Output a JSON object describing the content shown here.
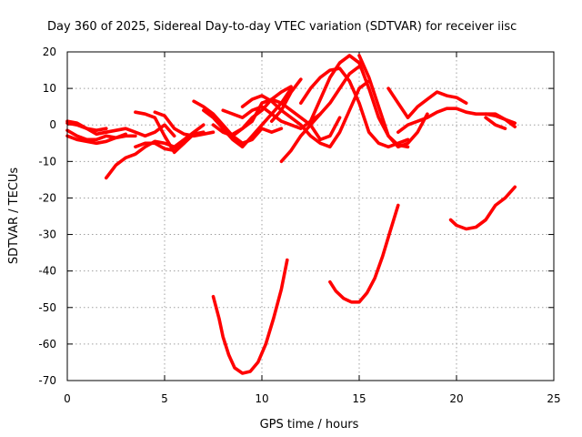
{
  "chart_data": {
    "type": "line",
    "title": "Day 360 of 2025, Sidereal Day-to-day VTEC variation (SDTVAR) for receiver iisc",
    "xlabel": "GPS time / hours",
    "ylabel": "SDTVAR / TECUs",
    "xlim": [
      0,
      25
    ],
    "ylim": [
      -70,
      20
    ],
    "xticks": [
      0,
      5,
      10,
      15,
      20,
      25
    ],
    "yticks": [
      -70,
      -60,
      -50,
      -40,
      -30,
      -20,
      -10,
      0,
      10,
      20
    ],
    "grid": true,
    "color": "#ff0000",
    "series": [
      {
        "name": "s1",
        "points": [
          [
            0,
            0.5
          ],
          [
            0.5,
            0
          ],
          [
            1,
            -1
          ],
          [
            1.5,
            -2.5
          ],
          [
            2,
            -2
          ],
          [
            2.5,
            -1.5
          ],
          [
            3,
            -1
          ],
          [
            3.5,
            -2
          ],
          [
            4,
            -3
          ],
          [
            4.5,
            -2
          ],
          [
            5,
            0
          ],
          [
            5.5,
            -3
          ]
        ]
      },
      {
        "name": "s2",
        "points": [
          [
            0,
            -3
          ],
          [
            0.5,
            -4
          ],
          [
            1,
            -4.5
          ],
          [
            1.5,
            -5
          ],
          [
            2,
            -4.5
          ],
          [
            2.5,
            -3.5
          ],
          [
            3,
            -2.5
          ]
        ]
      },
      {
        "name": "s3",
        "points": [
          [
            0,
            -1.5
          ],
          [
            0.5,
            -3
          ],
          [
            1,
            -4
          ],
          [
            1.5,
            -4
          ],
          [
            2,
            -3
          ],
          [
            2.5,
            -3.5
          ],
          [
            3,
            -3
          ],
          [
            3.5,
            -3
          ]
        ]
      },
      {
        "name": "s4",
        "points": [
          [
            0,
            1
          ],
          [
            0.5,
            0.5
          ],
          [
            1,
            -1
          ],
          [
            1.5,
            -1.5
          ],
          [
            2,
            -1
          ]
        ]
      },
      {
        "name": "s5",
        "points": [
          [
            2,
            -14.5
          ],
          [
            2.5,
            -11
          ],
          [
            3,
            -9
          ],
          [
            3.5,
            -8
          ],
          [
            4,
            -6
          ],
          [
            4.5,
            -4.5
          ],
          [
            5,
            -5
          ],
          [
            5.5,
            -6
          ],
          [
            6,
            -4
          ],
          [
            6.5,
            -2
          ],
          [
            7,
            0
          ]
        ]
      },
      {
        "name": "s6",
        "points": [
          [
            3.5,
            3.5
          ],
          [
            4,
            3
          ],
          [
            4.5,
            2
          ],
          [
            5,
            -3
          ],
          [
            5.5,
            -7.5
          ],
          [
            6,
            -5
          ],
          [
            6.5,
            -2.5
          ],
          [
            7,
            -2
          ]
        ]
      },
      {
        "name": "s7",
        "points": [
          [
            3.5,
            -6
          ],
          [
            4,
            -5
          ],
          [
            4.5,
            -5
          ],
          [
            5,
            -6.5
          ],
          [
            5.5,
            -7
          ],
          [
            6,
            -5
          ]
        ]
      },
      {
        "name": "s8",
        "points": [
          [
            4.5,
            3.5
          ],
          [
            5,
            2.5
          ],
          [
            5.5,
            -1
          ],
          [
            6,
            -2.5
          ],
          [
            6.5,
            -3
          ],
          [
            7,
            -2.5
          ],
          [
            7.5,
            -2
          ]
        ]
      },
      {
        "name": "s9",
        "points": [
          [
            6.5,
            6.5
          ],
          [
            7,
            5
          ],
          [
            7.5,
            3
          ],
          [
            8,
            0
          ],
          [
            8.5,
            -3
          ],
          [
            9,
            -5
          ],
          [
            9.5,
            -4
          ],
          [
            10,
            -1
          ],
          [
            10.5,
            -2
          ],
          [
            11,
            -1
          ]
        ]
      },
      {
        "name": "s10",
        "points": [
          [
            7,
            4
          ],
          [
            7.5,
            2
          ],
          [
            8,
            -1
          ],
          [
            8.5,
            -4
          ],
          [
            9,
            -6
          ],
          [
            9.5,
            -3
          ],
          [
            10,
            0
          ],
          [
            10.5,
            3
          ],
          [
            11,
            6
          ],
          [
            11.5,
            10
          ]
        ]
      },
      {
        "name": "s11",
        "points": [
          [
            7.5,
            0
          ],
          [
            8,
            -2
          ],
          [
            8.5,
            -3
          ],
          [
            9,
            -1
          ],
          [
            9.5,
            2
          ],
          [
            10,
            4
          ],
          [
            10.5,
            7
          ],
          [
            11,
            9
          ],
          [
            11.5,
            10.5
          ]
        ]
      },
      {
        "name": "s12",
        "points": [
          [
            8,
            4
          ],
          [
            8.5,
            3
          ],
          [
            9,
            2
          ],
          [
            9.5,
            4
          ],
          [
            10,
            5
          ],
          [
            10.5,
            3
          ],
          [
            11,
            1
          ],
          [
            11.5,
            0
          ],
          [
            12,
            -1
          ],
          [
            12.5,
            1
          ],
          [
            13,
            3
          ]
        ]
      },
      {
        "name": "s13",
        "points": [
          [
            8.5,
            -2.5
          ],
          [
            9,
            -1
          ],
          [
            9.5,
            1
          ],
          [
            10,
            6
          ],
          [
            10.5,
            7
          ],
          [
            11,
            6
          ],
          [
            11.5,
            4
          ],
          [
            12,
            2
          ],
          [
            12.5,
            0
          ],
          [
            13,
            -4
          ],
          [
            13.5,
            -3
          ],
          [
            14,
            2
          ]
        ]
      },
      {
        "name": "s14",
        "points": [
          [
            9,
            5
          ],
          [
            9.5,
            7
          ],
          [
            10,
            8
          ],
          [
            10.5,
            6.5
          ],
          [
            11,
            4
          ],
          [
            11.5,
            2
          ],
          [
            12,
            0
          ],
          [
            12.5,
            -3
          ],
          [
            13,
            -5
          ],
          [
            13.5,
            -6
          ],
          [
            14,
            -2
          ],
          [
            14.5,
            4
          ],
          [
            15,
            10
          ],
          [
            15.5,
            12
          ]
        ]
      },
      {
        "name": "s15",
        "points": [
          [
            10.5,
            1
          ],
          [
            11,
            4
          ],
          [
            11.5,
            9
          ],
          [
            12,
            12.5
          ]
        ]
      },
      {
        "name": "s16",
        "points": [
          [
            11,
            -10
          ],
          [
            11.5,
            -7
          ],
          [
            12,
            -3
          ],
          [
            12.5,
            0
          ],
          [
            13,
            3
          ],
          [
            13.5,
            6
          ],
          [
            14,
            10
          ],
          [
            14.5,
            14
          ],
          [
            15,
            16
          ]
        ]
      },
      {
        "name": "s17",
        "points": [
          [
            12,
            6
          ],
          [
            12.5,
            10
          ],
          [
            13,
            13
          ],
          [
            13.5,
            15
          ],
          [
            14,
            15.5
          ],
          [
            14.5,
            12
          ],
          [
            15,
            6
          ],
          [
            15.5,
            -2
          ],
          [
            16,
            -5
          ],
          [
            16.5,
            -6
          ],
          [
            17,
            -5
          ],
          [
            17.5,
            -4
          ]
        ]
      },
      {
        "name": "s18",
        "points": [
          [
            12.5,
            1
          ],
          [
            13,
            7
          ],
          [
            13.5,
            13
          ],
          [
            14,
            17
          ],
          [
            14.5,
            19
          ],
          [
            15,
            17
          ],
          [
            15.5,
            10
          ],
          [
            16,
            2
          ],
          [
            16.5,
            -3
          ],
          [
            17,
            -5.5
          ],
          [
            17.5,
            -6
          ]
        ]
      },
      {
        "name": "s19",
        "points": [
          [
            15,
            19
          ],
          [
            15.5,
            13
          ],
          [
            16,
            5
          ],
          [
            16.5,
            -3
          ],
          [
            17,
            -6
          ],
          [
            17.5,
            -5
          ],
          [
            18,
            -2
          ],
          [
            18.5,
            3
          ]
        ]
      },
      {
        "name": "s20",
        "points": [
          [
            16.5,
            10
          ],
          [
            17,
            6
          ],
          [
            17.5,
            2
          ],
          [
            18,
            5
          ],
          [
            18.5,
            7
          ],
          [
            19,
            9
          ],
          [
            19.5,
            8
          ],
          [
            20,
            7.5
          ],
          [
            20.5,
            6
          ]
        ]
      },
      {
        "name": "s21",
        "points": [
          [
            17,
            -2
          ],
          [
            17.5,
            0
          ],
          [
            18,
            1
          ],
          [
            18.5,
            2
          ],
          [
            19,
            3.5
          ],
          [
            19.5,
            4.5
          ],
          [
            20,
            4.5
          ],
          [
            20.5,
            3.5
          ],
          [
            21,
            3
          ],
          [
            21.5,
            3
          ],
          [
            22,
            2.5
          ],
          [
            22.5,
            1.5
          ],
          [
            23,
            0.5
          ]
        ]
      },
      {
        "name": "s22",
        "points": [
          [
            21.5,
            3
          ],
          [
            22,
            3
          ],
          [
            22.5,
            1.5
          ],
          [
            23,
            -0.5
          ]
        ]
      },
      {
        "name": "s23",
        "points": [
          [
            21.5,
            2
          ],
          [
            22,
            0
          ],
          [
            22.5,
            -1
          ]
        ]
      },
      {
        "name": "s24",
        "points": [
          [
            7.5,
            -47
          ],
          [
            7.8,
            -53
          ],
          [
            8,
            -58
          ],
          [
            8.3,
            -63
          ],
          [
            8.6,
            -66.5
          ],
          [
            9,
            -68
          ],
          [
            9.4,
            -67.5
          ],
          [
            9.8,
            -65
          ],
          [
            10.2,
            -60
          ],
          [
            10.6,
            -53
          ],
          [
            11,
            -45
          ],
          [
            11.3,
            -37
          ]
        ]
      },
      {
        "name": "s25",
        "points": [
          [
            13.5,
            -43
          ],
          [
            13.8,
            -45.5
          ],
          [
            14.2,
            -47.5
          ],
          [
            14.6,
            -48.5
          ],
          [
            15,
            -48.5
          ],
          [
            15.4,
            -46
          ],
          [
            15.8,
            -42
          ],
          [
            16.2,
            -36
          ],
          [
            16.6,
            -29
          ],
          [
            17,
            -22
          ]
        ]
      },
      {
        "name": "s26",
        "points": [
          [
            19.7,
            -26
          ],
          [
            20,
            -27.5
          ],
          [
            20.5,
            -28.5
          ],
          [
            21,
            -28
          ],
          [
            21.5,
            -26
          ],
          [
            22,
            -22
          ],
          [
            22.5,
            -20
          ],
          [
            23,
            -17
          ]
        ]
      }
    ]
  }
}
